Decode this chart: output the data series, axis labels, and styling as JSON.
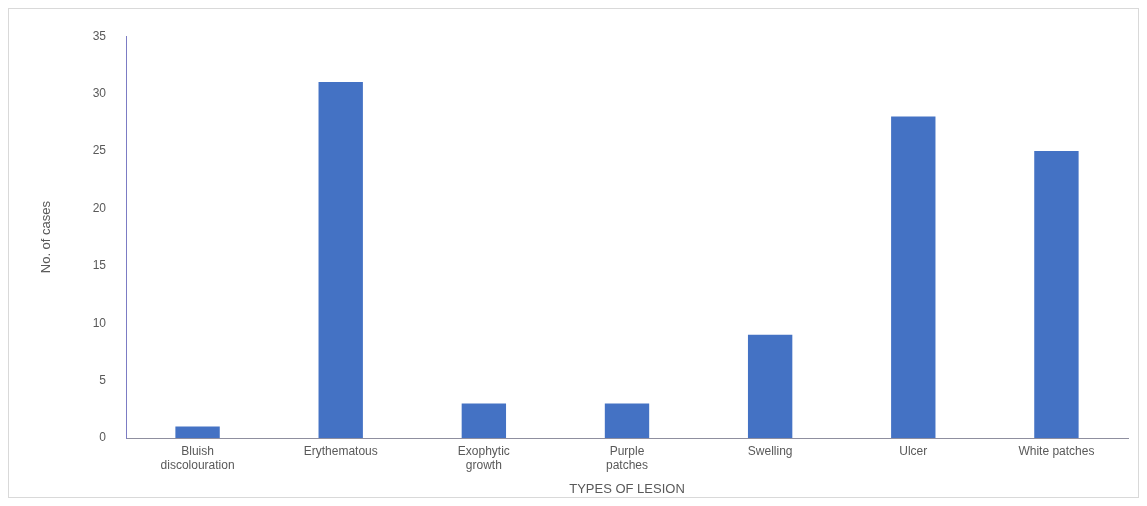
{
  "chart_data": {
    "type": "bar",
    "xlabel": "TYPES OF LESION",
    "ylabel": "No. of cases",
    "categories": [
      "Bluish discolouration",
      "Erythematous",
      "Exophytic growth",
      "Purple patches",
      "Swelling",
      "Ulcer",
      "White patches"
    ],
    "values": [
      1,
      31,
      3,
      3,
      9,
      28,
      25
    ],
    "color": "#4472c4",
    "ylim": [
      0,
      35
    ],
    "yticks": [
      0,
      5,
      10,
      15,
      20,
      25,
      30,
      35
    ]
  }
}
